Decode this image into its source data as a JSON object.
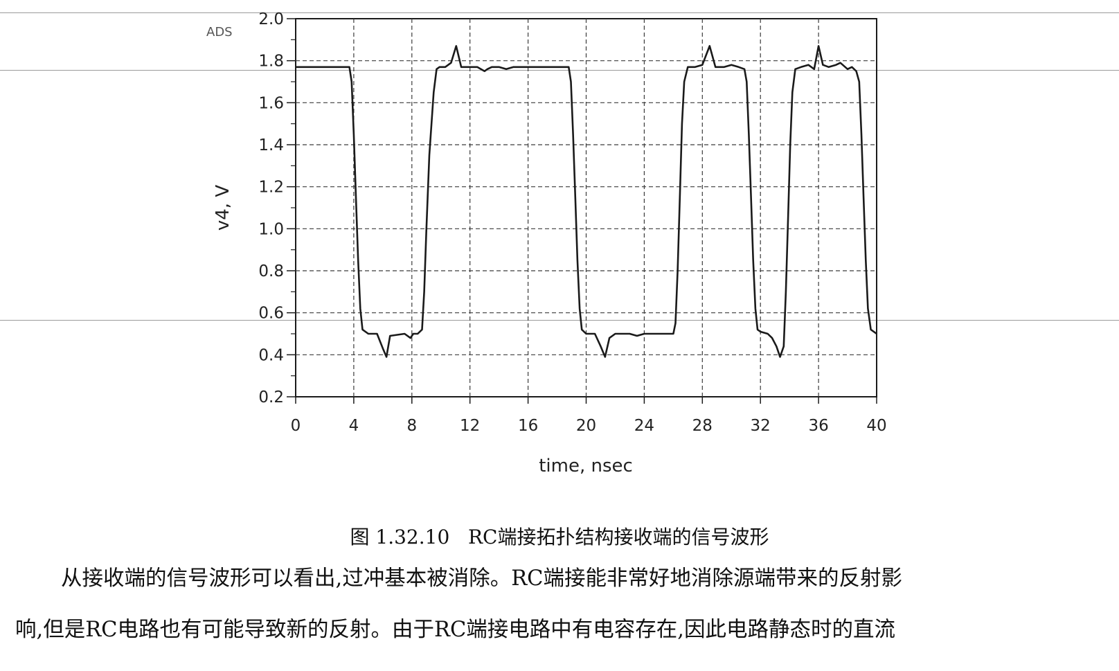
{
  "chart_data": {
    "type": "line",
    "watermark": "ADS",
    "xlabel": "time, nsec",
    "ylabel": "v4, V",
    "xlim": [
      0,
      40
    ],
    "ylim": [
      0.2,
      2.0
    ],
    "x_ticks": [
      "0",
      "4",
      "8",
      "12",
      "16",
      "20",
      "24",
      "28",
      "32",
      "36",
      "40"
    ],
    "y_ticks": [
      "0.2",
      "0.4",
      "0.6",
      "0.8",
      "1.0",
      "1.2",
      "1.4",
      "1.6",
      "1.8",
      "2.0"
    ],
    "grid": true,
    "line_color": "#1a1a1a",
    "series": [
      {
        "x": [
          0,
          3.7,
          3.85,
          4.0,
          4.15,
          4.3,
          4.45,
          4.6,
          5.0,
          5.6,
          6.0,
          6.25,
          6.5,
          7.5,
          7.9,
          8.1,
          8.4,
          8.7,
          8.85,
          9.0,
          9.2,
          9.5,
          9.7,
          9.9,
          10.3,
          10.7,
          11.05,
          11.4,
          11.8,
          12.5,
          13.0,
          13.2,
          13.5,
          14.0,
          14.5,
          15,
          16,
          17,
          18.5,
          18.8,
          18.95,
          19.1,
          19.25,
          19.4,
          19.55,
          19.7,
          20.0,
          20.6,
          21.0,
          21.3,
          21.6,
          22.0,
          23.0,
          23.5,
          24,
          25,
          26.0,
          26.15,
          26.3,
          26.45,
          26.6,
          26.75,
          27.0,
          27.5,
          28.0,
          28.5,
          28.9,
          29.5,
          30.0,
          30.5,
          30.9,
          31.05,
          31.2,
          31.35,
          31.5,
          31.65,
          31.8,
          32.0,
          32.5,
          32.8,
          33.1,
          33.35,
          33.6,
          33.75,
          33.9,
          34.05,
          34.2,
          34.4,
          34.8,
          35.3,
          35.7,
          36.0,
          36.3,
          36.7,
          37.2,
          37.5,
          38.0,
          38.3,
          38.6,
          38.8,
          38.95,
          39.1,
          39.25,
          39.4,
          39.6,
          40.0
        ],
        "y": [
          1.77,
          1.77,
          1.7,
          1.45,
          1.15,
          0.85,
          0.62,
          0.52,
          0.5,
          0.5,
          0.43,
          0.39,
          0.49,
          0.5,
          0.48,
          0.5,
          0.5,
          0.52,
          0.7,
          1.0,
          1.35,
          1.65,
          1.76,
          1.77,
          1.77,
          1.79,
          1.87,
          1.77,
          1.77,
          1.77,
          1.75,
          1.76,
          1.77,
          1.77,
          1.76,
          1.77,
          1.77,
          1.77,
          1.77,
          1.77,
          1.7,
          1.45,
          1.15,
          0.85,
          0.62,
          0.52,
          0.5,
          0.5,
          0.44,
          0.39,
          0.48,
          0.5,
          0.5,
          0.49,
          0.5,
          0.5,
          0.5,
          0.55,
          0.8,
          1.15,
          1.5,
          1.7,
          1.77,
          1.77,
          1.78,
          1.87,
          1.77,
          1.77,
          1.78,
          1.77,
          1.76,
          1.7,
          1.45,
          1.15,
          0.85,
          0.62,
          0.52,
          0.51,
          0.5,
          0.48,
          0.44,
          0.39,
          0.44,
          0.7,
          1.05,
          1.4,
          1.65,
          1.76,
          1.77,
          1.78,
          1.76,
          1.87,
          1.78,
          1.77,
          1.78,
          1.79,
          1.76,
          1.77,
          1.75,
          1.7,
          1.45,
          1.15,
          0.85,
          0.62,
          0.52,
          0.5
        ]
      }
    ]
  },
  "caption": "图 1.32.10   RC端接拓扑结构接收端的信号波形",
  "paragraph_lines": [
    "从接收端的信号波形可以看出,过冲基本被消除。RC端接能非常好地消除源端带来的反射影",
    "响,但是RC电路也有可能导致新的反射。由于RC端接电路中有电容存在,因此电路静态时的直流"
  ]
}
